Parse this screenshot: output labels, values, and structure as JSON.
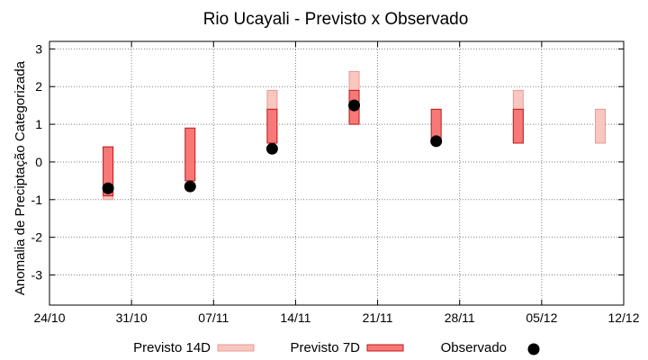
{
  "chart_data": {
    "type": "floating-bar",
    "title": "Rio Ucayali - Previsto x Observado",
    "ylabel": "Anomalia de Preciptação Categorizada",
    "xlabel": "",
    "ylim": [
      -3.8,
      3.2
    ],
    "xlim_days": [
      0,
      49
    ],
    "yticks": [
      3,
      2,
      1,
      0,
      -1,
      -2,
      -3
    ],
    "xticks": [
      {
        "day": 0,
        "label": "24/10"
      },
      {
        "day": 7,
        "label": "31/10"
      },
      {
        "day": 14,
        "label": "07/11"
      },
      {
        "day": 21,
        "label": "14/11"
      },
      {
        "day": 28,
        "label": "21/11"
      },
      {
        "day": 35,
        "label": "28/11"
      },
      {
        "day": 42,
        "label": "05/12"
      },
      {
        "day": 49,
        "label": "12/12"
      }
    ],
    "grid": true,
    "legend_position": "bottom",
    "colors": {
      "p14_fill": "#f9c6c0",
      "p14_stroke": "#e89a92",
      "p7_fill": "#f87878",
      "p7_stroke": "#c01818",
      "observed": "#000000",
      "grid": "#808080"
    },
    "series": [
      {
        "name": "Previsto 14D",
        "kind": "range",
        "points": [
          {
            "day": 5,
            "low": -1.0,
            "high": 0.4
          },
          {
            "day": 19,
            "low": 0.5,
            "high": 1.9
          },
          {
            "day": 26,
            "low": 1.0,
            "high": 2.4
          },
          {
            "day": 40,
            "low": 0.5,
            "high": 1.9
          },
          {
            "day": 47,
            "low": 0.5,
            "high": 1.4
          }
        ]
      },
      {
        "name": "Previsto 7D",
        "kind": "range",
        "points": [
          {
            "day": 5,
            "low": -0.9,
            "high": 0.4
          },
          {
            "day": 12,
            "low": -0.5,
            "high": 0.9
          },
          {
            "day": 19,
            "low": 0.5,
            "high": 1.4
          },
          {
            "day": 26,
            "low": 1.0,
            "high": 1.9
          },
          {
            "day": 33,
            "low": 0.5,
            "high": 1.4
          },
          {
            "day": 40,
            "low": 0.5,
            "high": 1.4
          }
        ]
      },
      {
        "name": "Observado",
        "kind": "point",
        "points": [
          {
            "day": 5,
            "value": -0.7
          },
          {
            "day": 12,
            "value": -0.65
          },
          {
            "day": 19,
            "value": 0.35
          },
          {
            "day": 26,
            "value": 1.5
          },
          {
            "day": 33,
            "value": 0.55
          }
        ]
      }
    ],
    "legend": [
      {
        "label": "Previsto 14D"
      },
      {
        "label": "Previsto 7D"
      },
      {
        "label": "Observado"
      }
    ]
  }
}
